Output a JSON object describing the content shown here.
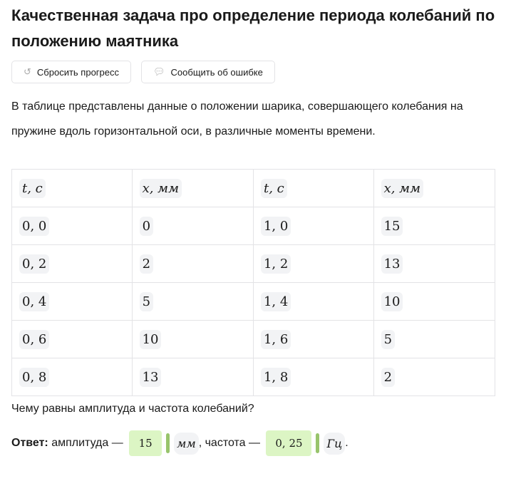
{
  "title": "Качественная задача про определение периода колебаний по положению маятника",
  "buttons": {
    "reset": "Сбросить прогресс",
    "report": "Сообщить об ошибке"
  },
  "intro": "В таблице представлены данные о положении шарика, совершающего колебания на пружине вдоль горизонтальной оси, в различные моменты времени.",
  "table": {
    "headers": [
      "t, с",
      "x, мм",
      "t, с",
      "x, мм"
    ],
    "rows": [
      [
        "0, 0",
        "0",
        "1, 0",
        "15"
      ],
      [
        "0, 2",
        "2",
        "1, 2",
        "13"
      ],
      [
        "0, 4",
        "5",
        "1, 4",
        "10"
      ],
      [
        "0, 6",
        "10",
        "1, 6",
        "5"
      ],
      [
        "0, 8",
        "13",
        "1, 8",
        "2"
      ]
    ]
  },
  "question": "Чему равны амплитуда и частота колебаний?",
  "answer": {
    "label": "Ответ:",
    "amp_text": "амплитуда —",
    "amp_value": "15",
    "amp_unit": "мм",
    "freq_text": ", частота —",
    "freq_value": "0, 25",
    "freq_unit": "Гц",
    "end": "."
  }
}
